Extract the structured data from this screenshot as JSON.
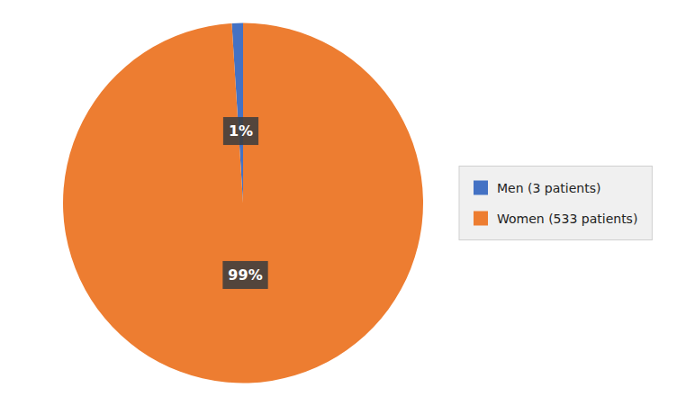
{
  "chart_data": {
    "type": "pie",
    "categories": [
      "Men (3 patients)",
      "Women (533 patients)"
    ],
    "values": [
      1,
      99
    ],
    "value_labels": [
      "1%",
      "99%"
    ],
    "colors": [
      "#4472C4",
      "#ED7D31"
    ],
    "data_labels": true,
    "legend": "right"
  }
}
